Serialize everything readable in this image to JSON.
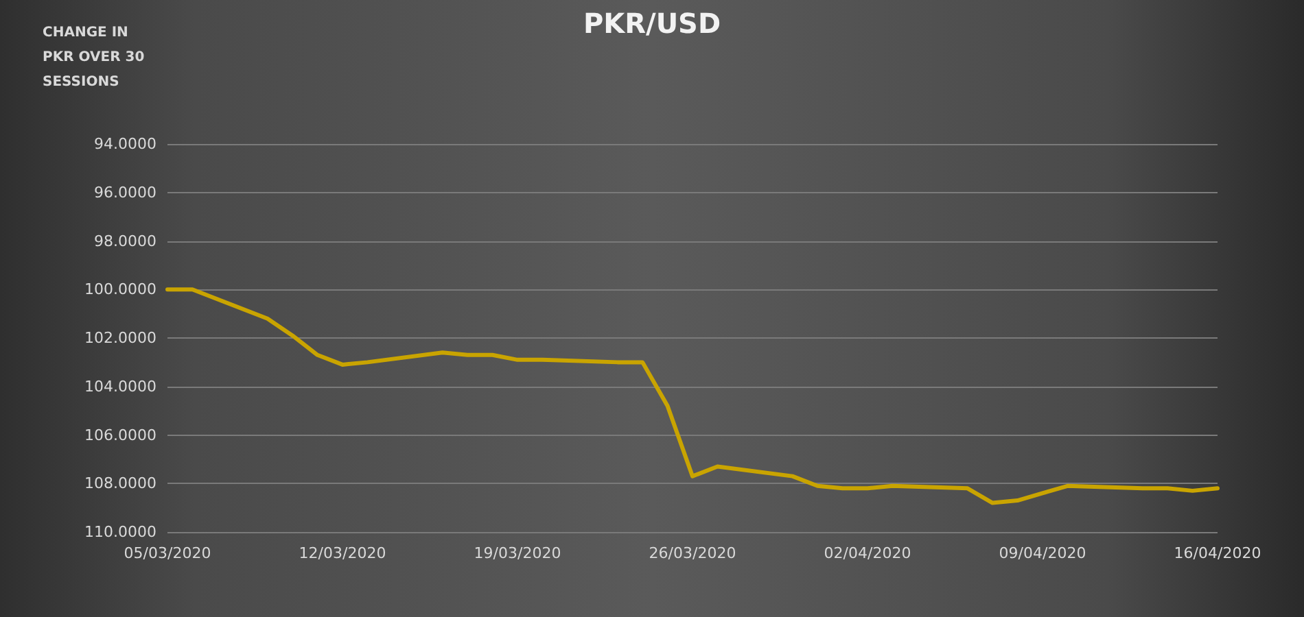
{
  "chart_data": {
    "type": "line",
    "title": "PKR/USD",
    "ylabel": "CHANGE IN PKR OVER 30 SESSIONS",
    "x": [
      "2020-03-05",
      "2020-03-06",
      "2020-03-09",
      "2020-03-10",
      "2020-03-11",
      "2020-03-12",
      "2020-03-13",
      "2020-03-16",
      "2020-03-17",
      "2020-03-18",
      "2020-03-19",
      "2020-03-20",
      "2020-03-23",
      "2020-03-24",
      "2020-03-25",
      "2020-03-26",
      "2020-03-27",
      "2020-03-30",
      "2020-03-31",
      "2020-04-01",
      "2020-04-02",
      "2020-04-03",
      "2020-04-06",
      "2020-04-07",
      "2020-04-08",
      "2020-04-09",
      "2020-04-10",
      "2020-04-13",
      "2020-04-14",
      "2020-04-15",
      "2020-04-16"
    ],
    "series": [
      {
        "color": "#c9a400",
        "values": [
          100.0,
          100.0,
          101.2,
          101.9,
          102.7,
          103.1,
          103.0,
          102.6,
          102.7,
          102.7,
          102.9,
          102.9,
          103.0,
          103.0,
          104.8,
          107.7,
          107.3,
          107.7,
          108.1,
          108.2,
          108.2,
          108.1,
          108.2,
          108.8,
          108.7,
          108.4,
          108.1,
          108.2,
          108.2,
          108.3,
          108.2
        ]
      }
    ],
    "xlim": [
      "2020-03-05",
      "2020-04-16"
    ],
    "xticks": [
      {
        "value": "2020-03-05",
        "label": "05/03/2020"
      },
      {
        "value": "2020-03-12",
        "label": "12/03/2020"
      },
      {
        "value": "2020-03-19",
        "label": "19/03/2020"
      },
      {
        "value": "2020-03-26",
        "label": "26/03/2020"
      },
      {
        "value": "2020-04-02",
        "label": "02/04/2020"
      },
      {
        "value": "2020-04-09",
        "label": "09/04/2020"
      },
      {
        "value": "2020-04-16",
        "label": "16/04/2020"
      }
    ],
    "ylim": [
      110,
      94
    ],
    "yticks": [
      {
        "value": 94,
        "label": "94.0000"
      },
      {
        "value": 96,
        "label": "96.0000"
      },
      {
        "value": 98,
        "label": "98.0000"
      },
      {
        "value": 100,
        "label": "100.0000"
      },
      {
        "value": 102,
        "label": "102.0000"
      },
      {
        "value": 104,
        "label": "104.0000"
      },
      {
        "value": 106,
        "label": "106.0000"
      },
      {
        "value": 108,
        "label": "108.0000"
      },
      {
        "value": 110,
        "label": "110.0000"
      }
    ],
    "grid": "y",
    "marker": "none",
    "line_style": "solid"
  }
}
